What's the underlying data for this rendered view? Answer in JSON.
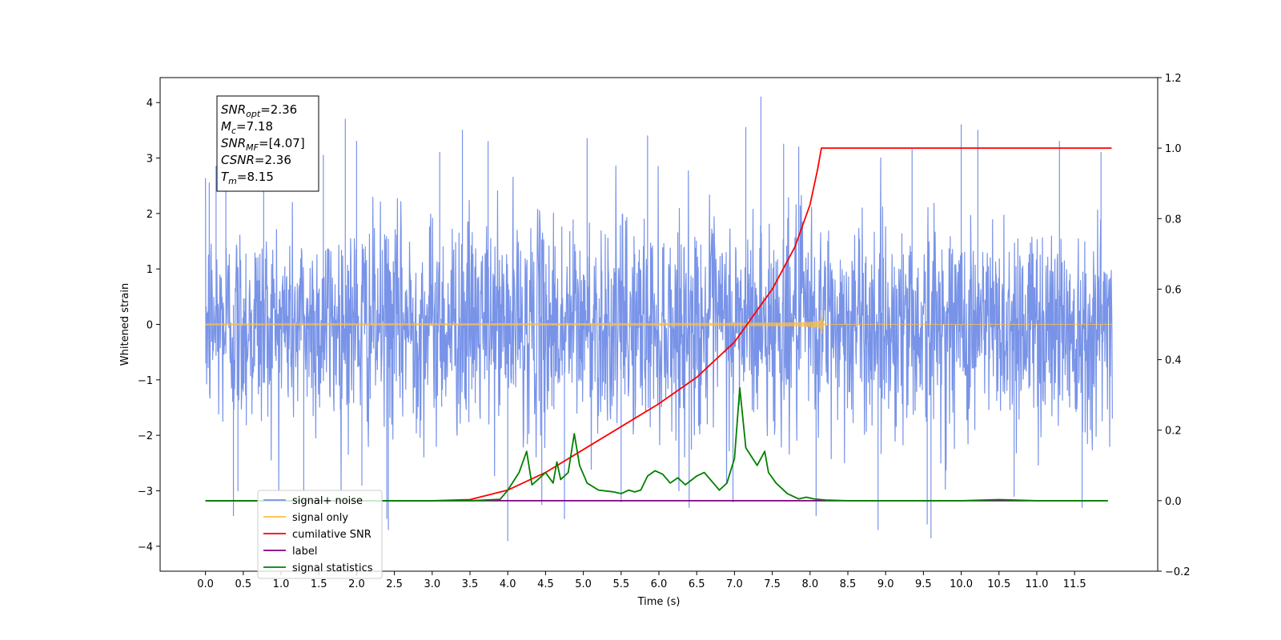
{
  "chart_data": {
    "type": "line",
    "xlabel": "Time (s)",
    "ylabel": "Whitened strain",
    "xlim": [
      -0.6,
      12.6
    ],
    "ylim": [
      -4.45,
      4.45
    ],
    "y2lim": [
      -0.2,
      1.2
    ],
    "x_ticks": [
      0.0,
      0.5,
      1.0,
      1.5,
      2.0,
      2.5,
      3.0,
      3.5,
      4.0,
      4.5,
      5.0,
      5.5,
      6.0,
      6.5,
      7.0,
      7.5,
      8.0,
      8.5,
      9.0,
      9.5,
      10.0,
      10.5,
      11.0,
      11.5
    ],
    "x_tick_labels": [
      "0.0",
      "0.5",
      "1.0",
      "1.5",
      "2.0",
      "2.5",
      "3.0",
      "3.5",
      "4.0",
      "4.5",
      "5.0",
      "5.5",
      "6.0",
      "6.5",
      "7.0",
      "7.5",
      "8.0",
      "8.5",
      "9.0",
      "9.5",
      "10.0",
      "10.5",
      "11.0",
      "11.5"
    ],
    "y_ticks": [
      -4,
      -3,
      -2,
      -1,
      0,
      1,
      2,
      3,
      4
    ],
    "y_tick_labels": [
      "−4",
      "−3",
      "−2",
      "−1",
      "0",
      "1",
      "2",
      "3",
      "4"
    ],
    "y2_ticks": [
      -0.2,
      0.0,
      0.2,
      0.4,
      0.6,
      0.8,
      1.0,
      1.2
    ],
    "y2_tick_labels": [
      "−0.2",
      "0.0",
      "0.2",
      "0.4",
      "0.6",
      "0.8",
      "1.0",
      "1.2"
    ],
    "grid": false,
    "legend_position": "lower-left",
    "series": [
      {
        "name": "signal+ noise",
        "axis": "left",
        "color": "#7893e8",
        "style": "noise",
        "x_range": [
          0.0,
          12.0
        ],
        "std": 0.95,
        "peaks": [
          [
            0.05,
            2.55
          ],
          [
            0.14,
            2.85
          ],
          [
            0.27,
            2.95
          ],
          [
            0.37,
            -3.45
          ],
          [
            0.43,
            -3.0
          ],
          [
            0.77,
            3.25
          ],
          [
            1.3,
            -3.0
          ],
          [
            1.56,
            3.05
          ],
          [
            1.85,
            3.7
          ],
          [
            2.0,
            3.3
          ],
          [
            2.07,
            -2.9
          ],
          [
            2.4,
            -3.5
          ],
          [
            2.42,
            -3.7
          ],
          [
            3.1,
            3.1
          ],
          [
            3.4,
            3.5
          ],
          [
            3.74,
            3.3
          ],
          [
            4.0,
            -3.9
          ],
          [
            4.45,
            -3.25
          ],
          [
            4.75,
            -3.5
          ],
          [
            5.05,
            3.35
          ],
          [
            5.5,
            -3.2
          ],
          [
            5.85,
            3.4
          ],
          [
            6.4,
            -3.3
          ],
          [
            6.98,
            -3.2
          ],
          [
            7.15,
            3.55
          ],
          [
            7.35,
            4.1
          ],
          [
            7.65,
            3.25
          ],
          [
            7.85,
            3.2
          ],
          [
            8.08,
            -3.45
          ],
          [
            8.9,
            -3.7
          ],
          [
            9.35,
            3.15
          ],
          [
            9.55,
            -3.6
          ],
          [
            9.6,
            -3.85
          ],
          [
            10.0,
            3.6
          ],
          [
            10.22,
            3.5
          ],
          [
            10.7,
            -3.1
          ],
          [
            11.3,
            3.3
          ],
          [
            11.6,
            -3.3
          ],
          [
            11.85,
            3.1
          ]
        ]
      },
      {
        "name": "signal only",
        "axis": "left",
        "color": "#ffbf40",
        "style": "chirp",
        "x_range": [
          0.0,
          12.0
        ],
        "merger_time": 8.15,
        "peak_amplitude": 0.27
      },
      {
        "name": "cumilative SNR",
        "axis": "right",
        "color": "#ff0000",
        "x": [
          0.0,
          1.0,
          2.0,
          3.0,
          3.5,
          4.0,
          4.5,
          5.0,
          5.5,
          6.0,
          6.5,
          7.0,
          7.5,
          7.8,
          8.0,
          8.1,
          8.15,
          9.0,
          10.0,
          11.0,
          11.99
        ],
        "y": [
          0.0,
          0.0,
          0.0,
          0.0,
          0.003,
          0.03,
          0.08,
          0.145,
          0.21,
          0.275,
          0.35,
          0.45,
          0.6,
          0.72,
          0.84,
          0.94,
          1.0,
          1.0,
          1.0,
          1.0,
          1.0
        ]
      },
      {
        "name": "label",
        "axis": "right",
        "color": "#800080",
        "x": [
          0.0,
          11.94
        ],
        "y": [
          0.0,
          0.0
        ]
      },
      {
        "name": "signal statistics",
        "axis": "right",
        "color": "#008000",
        "x": [
          0.0,
          0.5,
          1.0,
          1.5,
          2.0,
          2.5,
          3.0,
          3.5,
          3.7,
          3.9,
          4.0,
          4.15,
          4.25,
          4.32,
          4.4,
          4.5,
          4.6,
          4.65,
          4.7,
          4.8,
          4.88,
          4.95,
          5.05,
          5.2,
          5.4,
          5.5,
          5.6,
          5.68,
          5.76,
          5.85,
          5.95,
          6.05,
          6.15,
          6.25,
          6.35,
          6.5,
          6.6,
          6.8,
          6.9,
          7.0,
          7.07,
          7.15,
          7.3,
          7.4,
          7.45,
          7.55,
          7.7,
          7.85,
          7.95,
          8.05,
          8.2,
          8.5,
          9.0,
          10.0,
          10.5,
          11.0,
          11.94
        ],
        "y": [
          0.0,
          0.0,
          0.0,
          0.0,
          0.0,
          0.0,
          0.0,
          0.0,
          0.002,
          0.004,
          0.03,
          0.08,
          0.14,
          0.045,
          0.06,
          0.08,
          0.05,
          0.11,
          0.06,
          0.08,
          0.19,
          0.1,
          0.05,
          0.03,
          0.025,
          0.02,
          0.03,
          0.025,
          0.03,
          0.07,
          0.085,
          0.075,
          0.05,
          0.065,
          0.045,
          0.07,
          0.08,
          0.03,
          0.05,
          0.12,
          0.32,
          0.15,
          0.1,
          0.14,
          0.08,
          0.05,
          0.02,
          0.005,
          0.01,
          0.005,
          0.002,
          0.0,
          0.0,
          0.0,
          0.003,
          0.0,
          0.0
        ]
      }
    ],
    "legend": {
      "entries": [
        {
          "label": "signal+ noise",
          "color": "#7893e8"
        },
        {
          "label": "signal only",
          "color": "#ffbf40"
        },
        {
          "label": "cumilative SNR",
          "color": "#ff0000"
        },
        {
          "label": "label",
          "color": "#800080"
        },
        {
          "label": "signal statistics",
          "color": "#008000"
        }
      ]
    },
    "annotation": {
      "position": "top-left",
      "lines": [
        {
          "main": "SNR",
          "sub": "opt",
          "value": "=2.36"
        },
        {
          "main": "M",
          "sub": "c",
          "value": "=7.18"
        },
        {
          "main": "SNR",
          "sub": "MF",
          "value": "=[4.07]"
        },
        {
          "main": "CSNR",
          "sub": "",
          "value": "=2.36"
        },
        {
          "main": "T",
          "sub": "m",
          "value": "=8.15"
        }
      ]
    }
  }
}
